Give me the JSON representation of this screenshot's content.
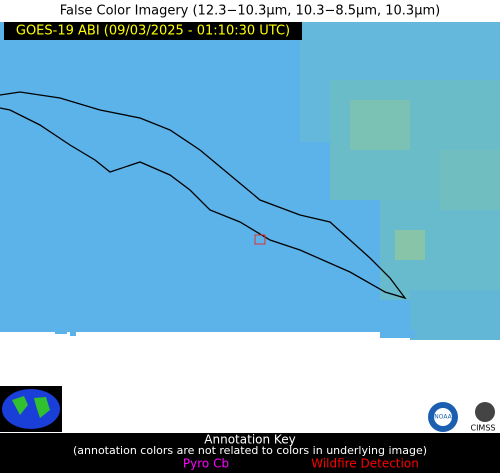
{
  "header": {
    "title": "False Color Imagery (12.3−10.3µm, 10.3−8.5µm, 10.3µm)",
    "subtitle": "GOES-19 ABI (09/03/2025 - 01:10:30 UTC)"
  },
  "logos": {
    "noaa": "NOAA",
    "cimss": "CIMSS"
  },
  "annotation_key": {
    "title": "Annotation Key",
    "note": "(annotation colors are not related to colors in underlying image)",
    "items": [
      "Pyro Cb",
      "Wildfire Detection"
    ]
  }
}
